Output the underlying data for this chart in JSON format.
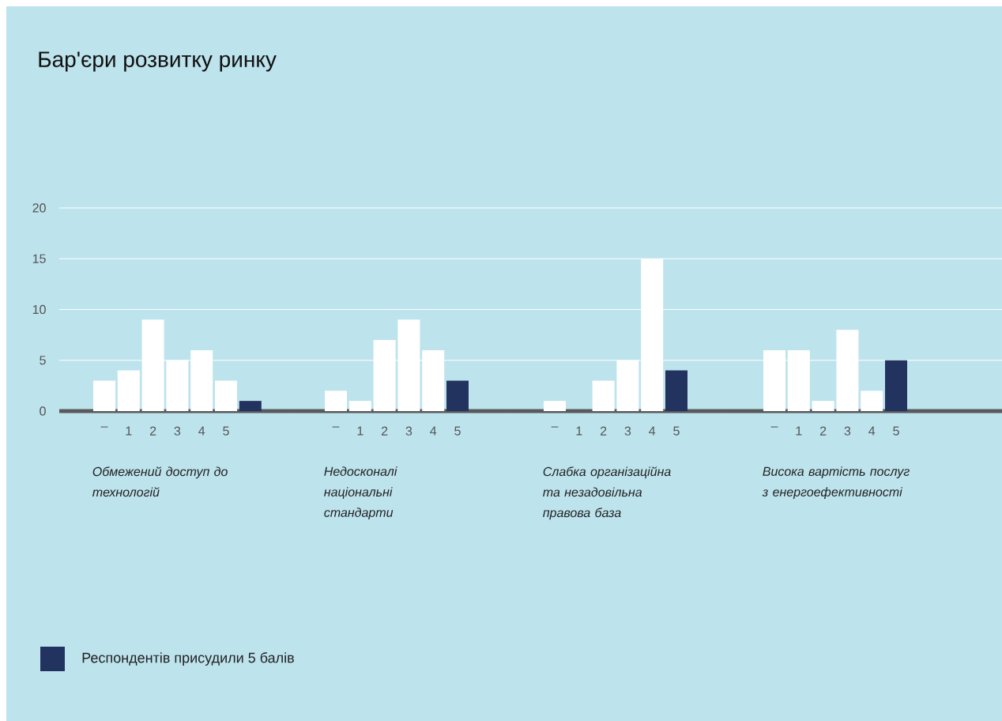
{
  "chart_data": [
    {
      "type": "bar",
      "title": "Бар'єри розвитку ринку",
      "xlabel": "Обмежений доступ до технологій",
      "categories": [
        "–",
        "1",
        "2",
        "3",
        "4",
        "5",
        null
      ],
      "series": [
        {
          "name": "Респондентів присудили 5 балів",
          "color": "#22335f",
          "colors": [
            "#ffffff",
            "#ffffff",
            "#ffffff",
            "#ffffff",
            "#ffffff",
            "#ffffff",
            "#22335f"
          ],
          "values": [
            3,
            4,
            9,
            5,
            6,
            3,
            1
          ]
        }
      ],
      "ylim": [
        0,
        20
      ],
      "yticks": [
        0,
        5,
        10,
        15,
        20
      ],
      "grid": "y",
      "legend": "bottom left"
    },
    {
      "type": "bar",
      "xlabel": "Недосконалі національні стандарти",
      "categories": [
        "–",
        "1",
        "2",
        "3",
        "4",
        "5"
      ],
      "series": [
        {
          "colors": [
            "#ffffff",
            "#ffffff",
            "#ffffff",
            "#ffffff",
            "#ffffff",
            "#22335f"
          ],
          "values": [
            2,
            1,
            7,
            9,
            6,
            3
          ]
        }
      ],
      "ylim": [
        0,
        20
      ],
      "yticks": [
        0,
        5,
        10,
        15,
        20
      ],
      "grid": "y",
      "tick_labels": "x"
    },
    {
      "type": "bar",
      "xlabel": "Слабка організаційна та незадовільна правова база",
      "categories": [
        "–",
        "1",
        "2",
        "3",
        "4",
        "5"
      ],
      "series": [
        {
          "colors": [
            "#ffffff",
            "#ffffff",
            "#ffffff",
            "#ffffff",
            "#ffffff",
            "#22335f"
          ],
          "values": [
            1,
            0,
            3,
            5,
            15,
            4
          ]
        }
      ],
      "ylim": [
        0,
        20
      ],
      "yticks": [
        0,
        5,
        10,
        15,
        20
      ],
      "grid": "y",
      "tick_labels": "x"
    },
    {
      "type": "bar",
      "xlabel": "Висока вартість послуг з енергоефективності",
      "categories": [
        "–",
        "1",
        "2",
        "3",
        "4",
        "5"
      ],
      "series": [
        {
          "colors": [
            "#ffffff",
            "#ffffff",
            "#ffffff",
            "#ffffff",
            "#ffffff",
            "#22335f"
          ],
          "values": [
            6,
            6,
            1,
            8,
            2,
            5
          ]
        }
      ],
      "ylim": [
        0,
        20
      ],
      "yticks": [
        0,
        5,
        10,
        15,
        20
      ],
      "grid": "y",
      "tick_labels": "x"
    }
  ]
}
